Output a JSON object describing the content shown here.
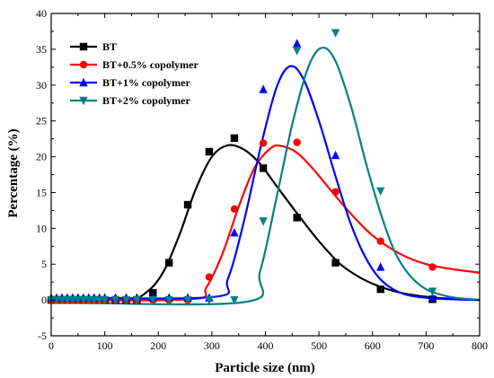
{
  "chart_data": {
    "type": "scatter",
    "xlabel": "Particle size (nm)",
    "ylabel": "Percentage (%)",
    "xlim": [
      0,
      800
    ],
    "ylim": [
      -5,
      40
    ],
    "xticks": [
      0,
      100,
      200,
      300,
      400,
      500,
      600,
      700,
      800
    ],
    "yticks": [
      -5,
      0,
      5,
      10,
      15,
      20,
      25,
      30,
      35,
      40
    ],
    "legend_position": "top-left",
    "grid": false,
    "series": [
      {
        "name": "BT",
        "color": "#000000",
        "marker": "square",
        "points": [
          [
            0,
            0
          ],
          [
            10,
            0
          ],
          [
            20,
            0
          ],
          [
            30,
            0
          ],
          [
            40,
            0
          ],
          [
            50,
            0
          ],
          [
            60,
            0
          ],
          [
            70,
            0
          ],
          [
            80,
            0
          ],
          [
            90,
            0
          ],
          [
            100,
            0
          ],
          [
            120,
            0
          ],
          [
            140,
            0
          ],
          [
            160,
            0
          ],
          [
            190,
            1
          ],
          [
            220,
            5.2
          ],
          [
            255,
            13.3
          ],
          [
            295,
            20.7
          ],
          [
            342,
            22.6
          ],
          [
            396,
            18.4
          ],
          [
            459,
            11.5
          ],
          [
            531,
            5.2
          ],
          [
            615,
            1.5
          ],
          [
            712,
            0.1
          ]
        ],
        "fit_curve": [
          [
            0,
            0
          ],
          [
            140,
            0.1
          ],
          [
            180,
            1.2
          ],
          [
            210,
            4
          ],
          [
            240,
            9.2
          ],
          [
            270,
            15.5
          ],
          [
            300,
            20
          ],
          [
            330,
            21.6
          ],
          [
            360,
            21
          ],
          [
            390,
            19
          ],
          [
            420,
            16
          ],
          [
            460,
            12
          ],
          [
            500,
            8.2
          ],
          [
            540,
            5
          ],
          [
            580,
            3
          ],
          [
            620,
            1.7
          ],
          [
            660,
            0.9
          ],
          [
            720,
            0.3
          ],
          [
            800,
            0
          ]
        ]
      },
      {
        "name": "BT+0.5% copolymer",
        "color": "#ff0000",
        "marker": "circle",
        "points": [
          [
            0,
            0
          ],
          [
            10,
            0
          ],
          [
            20,
            0
          ],
          [
            30,
            0
          ],
          [
            40,
            0
          ],
          [
            50,
            0
          ],
          [
            60,
            0
          ],
          [
            70,
            0
          ],
          [
            80,
            0
          ],
          [
            90,
            0
          ],
          [
            100,
            0
          ],
          [
            120,
            0
          ],
          [
            140,
            0
          ],
          [
            160,
            0
          ],
          [
            190,
            0
          ],
          [
            220,
            0
          ],
          [
            255,
            0
          ],
          [
            295,
            3.2
          ],
          [
            342,
            12.7
          ],
          [
            396,
            21.9
          ],
          [
            459,
            22
          ],
          [
            531,
            15.1
          ],
          [
            615,
            8.2
          ],
          [
            712,
            4.6
          ]
        ],
        "fit_curve": [
          [
            0,
            0
          ],
          [
            260,
            0.1
          ],
          [
            290,
            1.8
          ],
          [
            320,
            6.5
          ],
          [
            350,
            13
          ],
          [
            380,
            18.5
          ],
          [
            410,
            21.2
          ],
          [
            430,
            21.5
          ],
          [
            460,
            20.5
          ],
          [
            490,
            18.2
          ],
          [
            520,
            15.5
          ],
          [
            560,
            12
          ],
          [
            600,
            9
          ],
          [
            650,
            6.5
          ],
          [
            700,
            5
          ],
          [
            750,
            4.3
          ],
          [
            800,
            3.8
          ]
        ]
      },
      {
        "name": "BT+1% copolymer",
        "color": "#0000ff",
        "marker": "triangle-up",
        "points": [
          [
            0,
            0.3
          ],
          [
            10,
            0.3
          ],
          [
            20,
            0.3
          ],
          [
            30,
            0.3
          ],
          [
            40,
            0.3
          ],
          [
            50,
            0.3
          ],
          [
            60,
            0.3
          ],
          [
            70,
            0.3
          ],
          [
            80,
            0.3
          ],
          [
            90,
            0.3
          ],
          [
            100,
            0.3
          ],
          [
            120,
            0.3
          ],
          [
            140,
            0.3
          ],
          [
            160,
            0.3
          ],
          [
            190,
            0.3
          ],
          [
            220,
            0.3
          ],
          [
            255,
            0.3
          ],
          [
            295,
            0.3
          ],
          [
            342,
            9.4
          ],
          [
            396,
            29.4
          ],
          [
            459,
            35.8
          ],
          [
            531,
            20.2
          ],
          [
            615,
            4.6
          ],
          [
            712,
            0.3
          ]
        ],
        "fit_curve": [
          [
            0,
            0.4
          ],
          [
            300,
            0.4
          ],
          [
            330,
            3
          ],
          [
            360,
            11
          ],
          [
            390,
            21
          ],
          [
            420,
            29.5
          ],
          [
            445,
            32.6
          ],
          [
            470,
            31
          ],
          [
            500,
            25
          ],
          [
            530,
            17.5
          ],
          [
            560,
            10.5
          ],
          [
            590,
            5.5
          ],
          [
            620,
            2.5
          ],
          [
            660,
            0.8
          ],
          [
            720,
            0.2
          ],
          [
            800,
            0
          ]
        ]
      },
      {
        "name": "BT+2% copolymer",
        "color": "#008080",
        "marker": "triangle-down",
        "points": [
          [
            0,
            0
          ],
          [
            10,
            0
          ],
          [
            20,
            0
          ],
          [
            30,
            0
          ],
          [
            40,
            0
          ],
          [
            50,
            0
          ],
          [
            60,
            0
          ],
          [
            70,
            0
          ],
          [
            80,
            0
          ],
          [
            90,
            0
          ],
          [
            100,
            0
          ],
          [
            120,
            0
          ],
          [
            140,
            0
          ],
          [
            160,
            0
          ],
          [
            190,
            0
          ],
          [
            220,
            0
          ],
          [
            255,
            0
          ],
          [
            295,
            0
          ],
          [
            342,
            0
          ],
          [
            396,
            11
          ],
          [
            459,
            34.8
          ],
          [
            531,
            37.3
          ],
          [
            615,
            15.2
          ],
          [
            712,
            1.2
          ]
        ],
        "fit_curve": [
          [
            0,
            -0.3
          ],
          [
            360,
            -0.3
          ],
          [
            390,
            4
          ],
          [
            420,
            14
          ],
          [
            450,
            24.5
          ],
          [
            480,
            32.5
          ],
          [
            505,
            35.2
          ],
          [
            530,
            33.5
          ],
          [
            560,
            27
          ],
          [
            590,
            18.5
          ],
          [
            620,
            11
          ],
          [
            650,
            5.5
          ],
          [
            690,
            2
          ],
          [
            740,
            0.5
          ],
          [
            800,
            0
          ]
        ]
      }
    ]
  }
}
